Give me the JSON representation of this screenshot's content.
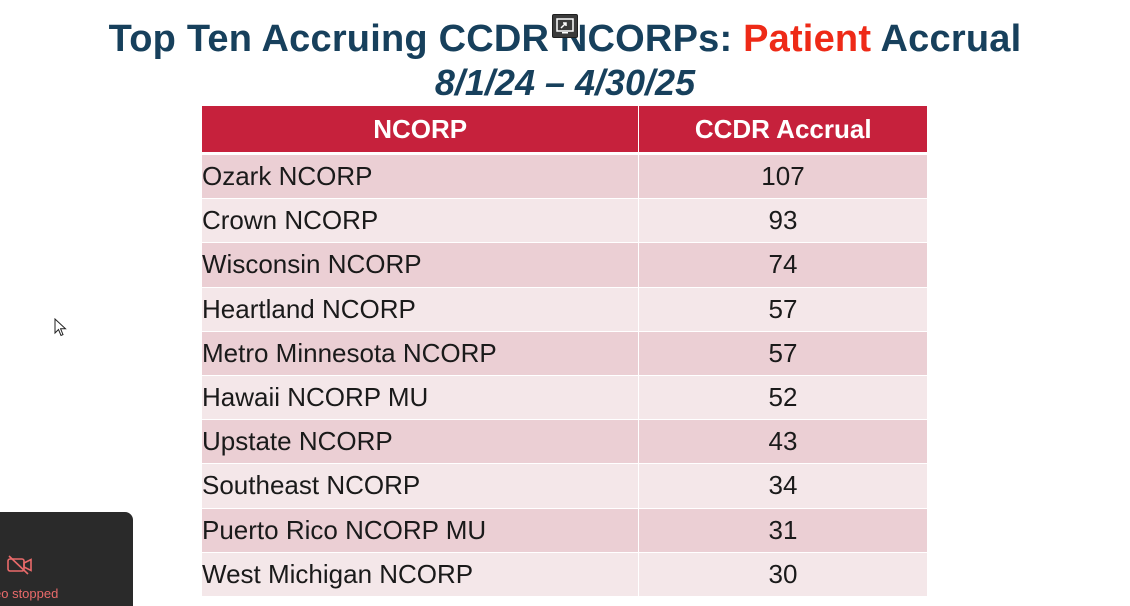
{
  "slide": {
    "title_part1": "Top Ten Accruing CCDR NCORPs: ",
    "title_accent": "Patient",
    "title_part2": " Accrual",
    "date_range": "8/1/24 – 4/30/25",
    "title_color": "#17405c",
    "accent_color": "#ee2a17"
  },
  "table": {
    "headers": [
      "NCORP",
      "CCDR Accrual"
    ],
    "header_color": "#c6213c",
    "rows": [
      {
        "name": "Ozark NCORP",
        "value": "107"
      },
      {
        "name": "Crown NCORP",
        "value": "93"
      },
      {
        "name": "Wisconsin NCORP",
        "value": "74"
      },
      {
        "name": "Heartland NCORP",
        "value": "57"
      },
      {
        "name": "Metro Minnesota NCORP",
        "value": "57"
      },
      {
        "name": "Hawaii NCORP MU",
        "value": "52"
      },
      {
        "name": "Upstate NCORP",
        "value": "43"
      },
      {
        "name": "Southeast NCORP",
        "value": "34"
      },
      {
        "name": "Puerto Rico NCORP MU",
        "value": "31"
      },
      {
        "name": "West Michigan NCORP",
        "value": "30"
      }
    ]
  },
  "video_panel": {
    "status": "eo stopped",
    "icon": "video-off-icon"
  },
  "overlay": {
    "share_icon": "screen-share-icon",
    "cursor_icon": "mouse-cursor-icon"
  }
}
